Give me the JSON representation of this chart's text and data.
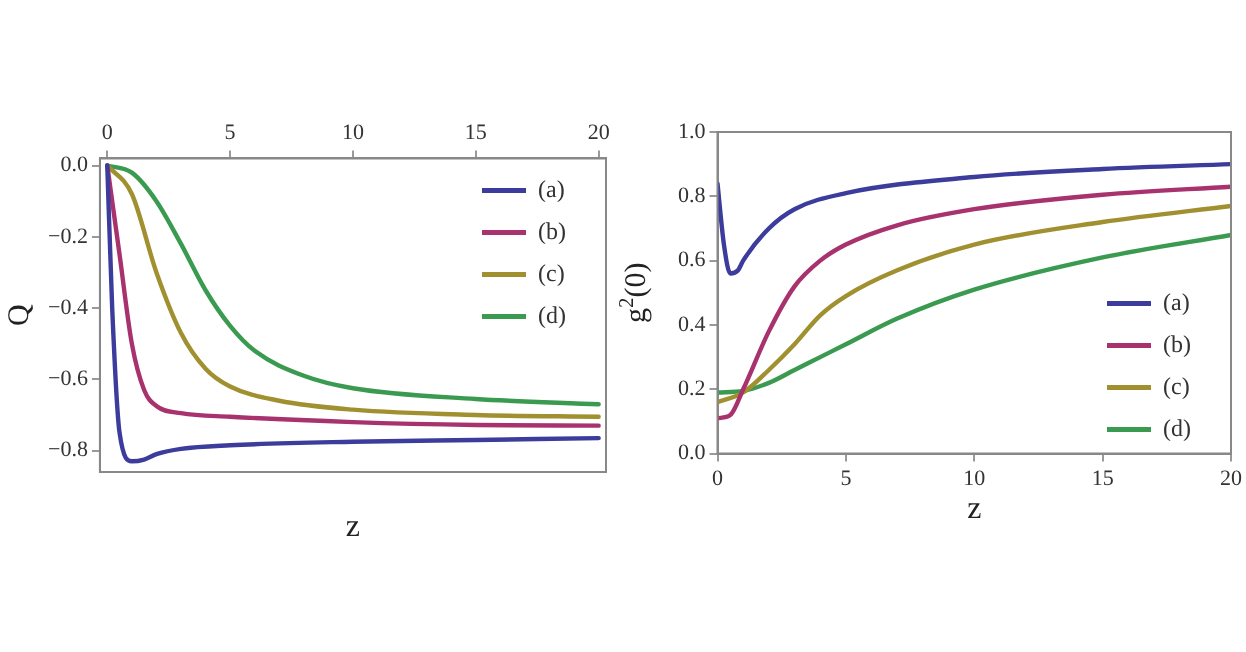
{
  "chart_data": [
    {
      "type": "line",
      "xlabel": "z",
      "ylabel": "Q",
      "xlim": [
        -0.3,
        20.3
      ],
      "xticks": [
        0,
        5,
        10,
        15,
        20
      ],
      "ylim": [
        -0.86,
        0.02
      ],
      "yticks": [
        {
          "value": 0,
          "label": "0.0"
        },
        {
          "value": -0.2,
          "label": "−0.2"
        },
        {
          "value": -0.4,
          "label": "−0.4"
        },
        {
          "value": -0.6,
          "label": "−0.6"
        },
        {
          "value": -0.8,
          "label": "−0.8"
        }
      ],
      "legend": "top right",
      "grid": false,
      "marker": "none",
      "line_style": "solid",
      "series": [
        {
          "name": "(a)",
          "color": "#3c3c9c",
          "x": [
            0,
            0.2,
            0.5,
            1,
            1.5,
            2,
            3,
            5,
            10,
            15,
            20
          ],
          "values": [
            0,
            -0.4,
            -0.75,
            -0.83,
            -0.825,
            -0.81,
            -0.795,
            -0.785,
            -0.775,
            -0.77,
            -0.765
          ]
        },
        {
          "name": "(b)",
          "color": "#a8326e",
          "x": [
            0,
            0.5,
            1,
            1.5,
            2,
            3,
            5,
            10,
            15,
            20
          ],
          "values": [
            0,
            -0.25,
            -0.5,
            -0.63,
            -0.675,
            -0.695,
            -0.705,
            -0.72,
            -0.728,
            -0.73
          ]
        },
        {
          "name": "(c)",
          "color": "#a09030",
          "x": [
            0,
            1,
            2,
            3,
            4,
            5,
            7,
            10,
            15,
            20
          ],
          "values": [
            0,
            -0.08,
            -0.3,
            -0.47,
            -0.57,
            -0.62,
            -0.66,
            -0.685,
            -0.7,
            -0.705
          ]
        },
        {
          "name": "(d)",
          "color": "#3a9a50",
          "x": [
            0,
            1,
            2,
            3,
            4,
            5,
            6,
            8,
            10,
            15,
            20
          ],
          "values": [
            0,
            -0.02,
            -0.1,
            -0.22,
            -0.35,
            -0.45,
            -0.52,
            -0.59,
            -0.625,
            -0.655,
            -0.67
          ]
        }
      ]
    },
    {
      "type": "line",
      "xlabel": "z",
      "ylabel": "g$^{2}$(0)",
      "xlim": [
        0,
        20
      ],
      "xticks": [
        0,
        5,
        10,
        15,
        20
      ],
      "ylim": [
        0,
        1
      ],
      "yticks": [
        {
          "value": 0,
          "label": "0.0"
        },
        {
          "value": 0.2,
          "label": "0.2"
        },
        {
          "value": 0.4,
          "label": "0.4"
        },
        {
          "value": 0.6,
          "label": "0.6"
        },
        {
          "value": 0.8,
          "label": "0.8"
        },
        {
          "value": 1,
          "label": "1.0"
        }
      ],
      "legend": "bottom right",
      "grid": false,
      "marker": "none",
      "line_style": "solid",
      "series": [
        {
          "name": "(a)",
          "color": "#3c3c9c",
          "x": [
            0,
            0.25,
            0.5,
            0.8,
            1,
            2,
            3,
            5,
            10,
            15,
            20
          ],
          "values": [
            0.84,
            0.65,
            0.56,
            0.57,
            0.6,
            0.7,
            0.76,
            0.81,
            0.86,
            0.885,
            0.9
          ]
        },
        {
          "name": "(b)",
          "color": "#a8326e",
          "x": [
            0,
            0.5,
            1,
            2,
            3,
            4,
            5,
            7,
            10,
            15,
            20
          ],
          "values": [
            0.11,
            0.12,
            0.2,
            0.38,
            0.52,
            0.6,
            0.65,
            0.71,
            0.76,
            0.805,
            0.83
          ]
        },
        {
          "name": "(c)",
          "color": "#a09030",
          "x": [
            0,
            1,
            2,
            3,
            4,
            5,
            7,
            10,
            15,
            20
          ],
          "values": [
            0.16,
            0.19,
            0.26,
            0.34,
            0.43,
            0.49,
            0.57,
            0.65,
            0.72,
            0.77
          ]
        },
        {
          "name": "(d)",
          "color": "#3a9a50",
          "x": [
            0,
            1,
            2,
            3,
            4,
            5,
            7,
            10,
            15,
            20
          ],
          "values": [
            0.19,
            0.195,
            0.22,
            0.26,
            0.3,
            0.34,
            0.42,
            0.51,
            0.61,
            0.68
          ]
        }
      ]
    }
  ]
}
